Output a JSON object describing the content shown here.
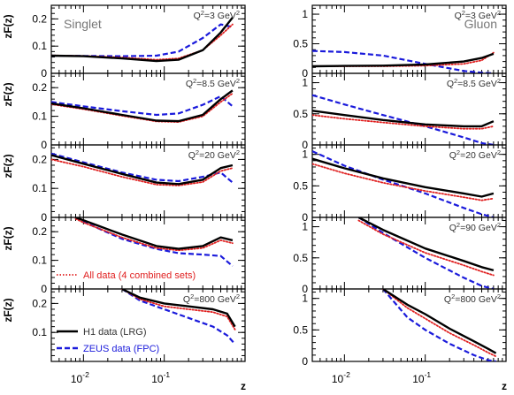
{
  "chart_data": {
    "type": "line",
    "ylabel": "zF(z)",
    "xlabel": "z",
    "x_scale": "log",
    "xlim": [
      0.004,
      1.0
    ],
    "x_tick_labels": [
      "10",
      "10"
    ],
    "x_tick_exponents": [
      "-2",
      "-1"
    ],
    "legend": {
      "placement": "bottom-left",
      "entries": [
        {
          "key": "h1",
          "label": "H1 data (LRG)",
          "color": "#000000",
          "style": "solid"
        },
        {
          "key": "zeus",
          "label": "ZEUS data (FPC)",
          "color": "#1a1adb",
          "style": "dashed"
        },
        {
          "key": "all",
          "label": "All data (4 combined sets)",
          "color": "#e02020",
          "style": "dotted"
        }
      ]
    },
    "panels": [
      {
        "column": "singlet",
        "row": 0,
        "name": "Singlet",
        "q2": "3",
        "ylim": [
          0,
          0.25
        ],
        "y_ticks": [
          "0",
          "0.1",
          "0.2"
        ],
        "y_tick_values": [
          0,
          0.1,
          0.2
        ],
        "series": {
          "h1": {
            "x": [
              0.004,
              0.01,
              0.03,
              0.08,
              0.15,
              0.3,
              0.5,
              0.7
            ],
            "y": [
              0.065,
              0.063,
              0.055,
              0.045,
              0.05,
              0.085,
              0.15,
              0.205
            ]
          },
          "zeus": {
            "x": [
              0.004,
              0.01,
              0.03,
              0.08,
              0.15,
              0.3,
              0.5,
              0.7
            ],
            "y": [
              0.065,
              0.064,
              0.063,
              0.065,
              0.08,
              0.13,
              0.18,
              0.17
            ]
          },
          "all": {
            "x": [
              0.004,
              0.01,
              0.03,
              0.08,
              0.15,
              0.3,
              0.5,
              0.7
            ],
            "y": [
              0.066,
              0.064,
              0.058,
              0.05,
              0.055,
              0.085,
              0.14,
              0.18
            ]
          }
        }
      },
      {
        "column": "gluon",
        "row": 0,
        "name": "Gluon",
        "q2": "3",
        "ylim": [
          0,
          1.15
        ],
        "y_ticks": [
          "0",
          "0.5",
          "1"
        ],
        "y_tick_values": [
          0,
          0.5,
          1
        ],
        "series": {
          "h1": {
            "x": [
              0.004,
              0.01,
              0.03,
              0.1,
              0.3,
              0.5,
              0.7
            ],
            "y": [
              0.12,
              0.125,
              0.13,
              0.15,
              0.2,
              0.26,
              0.33
            ]
          },
          "zeus": {
            "x": [
              0.004,
              0.01,
              0.03,
              0.1,
              0.3,
              0.5,
              0.7
            ],
            "y": [
              0.38,
              0.36,
              0.3,
              0.16,
              0.04,
              0.01,
              0.0
            ]
          },
          "all": {
            "x": [
              0.004,
              0.01,
              0.03,
              0.1,
              0.3,
              0.5,
              0.7
            ],
            "y": [
              0.12,
              0.12,
              0.12,
              0.13,
              0.16,
              0.22,
              0.35
            ]
          }
        }
      },
      {
        "column": "singlet",
        "row": 1,
        "name": "",
        "q2": "8.5",
        "ylim": [
          0,
          0.25
        ],
        "y_ticks": [
          "0",
          "0.1",
          "0.2"
        ],
        "y_tick_values": [
          0,
          0.1,
          0.2
        ],
        "series": {
          "h1": {
            "x": [
              0.004,
              0.01,
              0.03,
              0.08,
              0.15,
              0.3,
              0.5,
              0.7
            ],
            "y": [
              0.145,
              0.128,
              0.105,
              0.085,
              0.083,
              0.105,
              0.16,
              0.19
            ]
          },
          "zeus": {
            "x": [
              0.004,
              0.01,
              0.03,
              0.08,
              0.15,
              0.3,
              0.5,
              0.7
            ],
            "y": [
              0.15,
              0.135,
              0.118,
              0.105,
              0.11,
              0.14,
              0.17,
              0.135
            ]
          },
          "all": {
            "x": [
              0.004,
              0.01,
              0.03,
              0.08,
              0.15,
              0.3,
              0.5,
              0.7
            ],
            "y": [
              0.142,
              0.125,
              0.102,
              0.082,
              0.08,
              0.1,
              0.15,
              0.18
            ]
          }
        }
      },
      {
        "column": "gluon",
        "row": 1,
        "name": "",
        "q2": "8.5",
        "ylim": [
          0,
          1.15
        ],
        "y_ticks": [
          "0",
          "0.5",
          "1"
        ],
        "y_tick_values": [
          0,
          0.5,
          1
        ],
        "series": {
          "h1": {
            "x": [
              0.004,
              0.01,
              0.03,
              0.1,
              0.3,
              0.5,
              0.7
            ],
            "y": [
              0.55,
              0.48,
              0.4,
              0.33,
              0.3,
              0.3,
              0.38
            ]
          },
          "zeus": {
            "x": [
              0.004,
              0.01,
              0.03,
              0.1,
              0.3,
              0.5,
              0.7
            ],
            "y": [
              0.8,
              0.65,
              0.48,
              0.3,
              0.12,
              0.03,
              0.0
            ]
          },
          "all": {
            "x": [
              0.004,
              0.01,
              0.03,
              0.1,
              0.3,
              0.5,
              0.7
            ],
            "y": [
              0.48,
              0.42,
              0.36,
              0.3,
              0.26,
              0.26,
              0.3
            ]
          }
        }
      },
      {
        "column": "singlet",
        "row": 2,
        "name": "",
        "q2": "20",
        "ylim": [
          0,
          0.25
        ],
        "y_ticks": [
          "0",
          "0.1",
          "0.2"
        ],
        "y_tick_values": [
          0,
          0.1,
          0.2
        ],
        "series": {
          "h1": {
            "x": [
              0.004,
              0.01,
              0.03,
              0.08,
              0.15,
              0.3,
              0.5,
              0.7
            ],
            "y": [
              0.215,
              0.185,
              0.15,
              0.12,
              0.115,
              0.13,
              0.17,
              0.18
            ]
          },
          "zeus": {
            "x": [
              0.004,
              0.01,
              0.03,
              0.08,
              0.15,
              0.3,
              0.5,
              0.7
            ],
            "y": [
              0.22,
              0.19,
              0.155,
              0.13,
              0.125,
              0.14,
              0.155,
              0.12
            ]
          },
          "all": {
            "x": [
              0.004,
              0.01,
              0.03,
              0.08,
              0.15,
              0.3,
              0.5,
              0.7
            ],
            "y": [
              0.2,
              0.175,
              0.14,
              0.113,
              0.11,
              0.122,
              0.16,
              0.17
            ]
          }
        }
      },
      {
        "column": "gluon",
        "row": 2,
        "name": "",
        "q2": "20",
        "ylim": [
          0,
          1.15
        ],
        "y_ticks": [
          "0",
          "0.5",
          "1"
        ],
        "y_tick_values": [
          0,
          0.5,
          1
        ],
        "series": {
          "h1": {
            "x": [
              0.004,
              0.01,
              0.03,
              0.1,
              0.3,
              0.5,
              0.7
            ],
            "y": [
              0.93,
              0.78,
              0.62,
              0.48,
              0.38,
              0.33,
              0.38
            ]
          },
          "zeus": {
            "x": [
              0.004,
              0.01,
              0.03,
              0.1,
              0.3,
              0.5,
              0.7
            ],
            "y": [
              1.05,
              0.82,
              0.6,
              0.38,
              0.15,
              0.05,
              0.0
            ]
          },
          "all": {
            "x": [
              0.004,
              0.01,
              0.03,
              0.1,
              0.3,
              0.5,
              0.7
            ],
            "y": [
              0.85,
              0.7,
              0.55,
              0.42,
              0.32,
              0.27,
              0.3
            ]
          }
        }
      },
      {
        "column": "singlet",
        "row": 3,
        "name": "",
        "q2": "",
        "ylim": [
          0,
          0.25
        ],
        "y_ticks": [
          "0",
          "0.1",
          "0.2"
        ],
        "y_tick_values": [
          0,
          0.1,
          0.2
        ],
        "series": {
          "h1": {
            "x": [
              0.008,
              0.01,
              0.03,
              0.08,
              0.15,
              0.3,
              0.5,
              0.7
            ],
            "y": [
              0.25,
              0.24,
              0.19,
              0.15,
              0.14,
              0.15,
              0.18,
              0.17
            ]
          },
          "zeus": {
            "x": [
              0.008,
              0.01,
              0.03,
              0.08,
              0.15,
              0.3,
              0.5,
              0.7
            ],
            "y": [
              0.25,
              0.235,
              0.175,
              0.14,
              0.125,
              0.12,
              0.115,
              0.08
            ]
          },
          "all": {
            "x": [
              0.008,
              0.01,
              0.03,
              0.08,
              0.15,
              0.3,
              0.5,
              0.7
            ],
            "y": [
              0.245,
              0.232,
              0.18,
              0.143,
              0.135,
              0.143,
              0.17,
              0.16
            ]
          }
        },
        "show_legend_entries": [
          "all"
        ]
      },
      {
        "column": "gluon",
        "row": 3,
        "name": "",
        "q2": "90",
        "ylim": [
          0,
          1.15
        ],
        "y_ticks": [
          "0",
          "0.5",
          "1"
        ],
        "y_tick_values": [
          0,
          0.5,
          1
        ],
        "series": {
          "h1": {
            "x": [
              0.015,
              0.03,
              0.1,
              0.3,
              0.5,
              0.7
            ],
            "y": [
              1.15,
              0.95,
              0.65,
              0.45,
              0.35,
              0.3
            ]
          },
          "zeus": {
            "x": [
              0.015,
              0.03,
              0.1,
              0.3,
              0.5,
              0.7
            ],
            "y": [
              1.15,
              0.9,
              0.5,
              0.18,
              0.05,
              0.0
            ]
          },
          "all": {
            "x": [
              0.015,
              0.03,
              0.1,
              0.3,
              0.5,
              0.7
            ],
            "y": [
              1.1,
              0.88,
              0.58,
              0.38,
              0.28,
              0.22
            ]
          }
        }
      },
      {
        "column": "singlet",
        "row": 4,
        "name": "",
        "q2": "800",
        "ylim": [
          0,
          0.25
        ],
        "y_ticks": [
          "0.1",
          "0.2"
        ],
        "y_tick_values": [
          0.1,
          0.2
        ],
        "series": {
          "h1": {
            "x": [
              0.03,
              0.05,
              0.1,
              0.2,
              0.4,
              0.6,
              0.75
            ],
            "y": [
              0.25,
              0.22,
              0.2,
              0.19,
              0.18,
              0.165,
              0.12
            ]
          },
          "zeus": {
            "x": [
              0.03,
              0.05,
              0.1,
              0.2,
              0.4,
              0.6,
              0.75
            ],
            "y": [
              0.25,
              0.21,
              0.18,
              0.15,
              0.12,
              0.09,
              0.06
            ]
          },
          "all": {
            "x": [
              0.03,
              0.05,
              0.1,
              0.2,
              0.4,
              0.6,
              0.75
            ],
            "y": [
              0.25,
              0.215,
              0.19,
              0.18,
              0.17,
              0.155,
              0.11
            ]
          }
        },
        "show_legend_entries": [
          "h1",
          "zeus"
        ]
      },
      {
        "column": "gluon",
        "row": 4,
        "name": "",
        "q2": "800",
        "ylim": [
          0,
          1.15
        ],
        "y_ticks": [
          "0",
          "0.5",
          "1"
        ],
        "y_tick_values": [
          0,
          0.5,
          1
        ],
        "series": {
          "h1": {
            "x": [
              0.03,
              0.06,
              0.1,
              0.2,
              0.4,
              0.6,
              0.75
            ],
            "y": [
              1.15,
              0.9,
              0.75,
              0.52,
              0.32,
              0.2,
              0.13
            ]
          },
          "zeus": {
            "x": [
              0.03,
              0.06,
              0.1,
              0.2,
              0.4,
              0.6,
              0.75
            ],
            "y": [
              1.15,
              0.7,
              0.5,
              0.28,
              0.1,
              0.02,
              0.0
            ]
          },
          "all": {
            "x": [
              0.03,
              0.06,
              0.1,
              0.2,
              0.4,
              0.6,
              0.75
            ],
            "y": [
              1.15,
              0.85,
              0.68,
              0.45,
              0.26,
              0.14,
              0.08
            ]
          }
        }
      }
    ]
  }
}
